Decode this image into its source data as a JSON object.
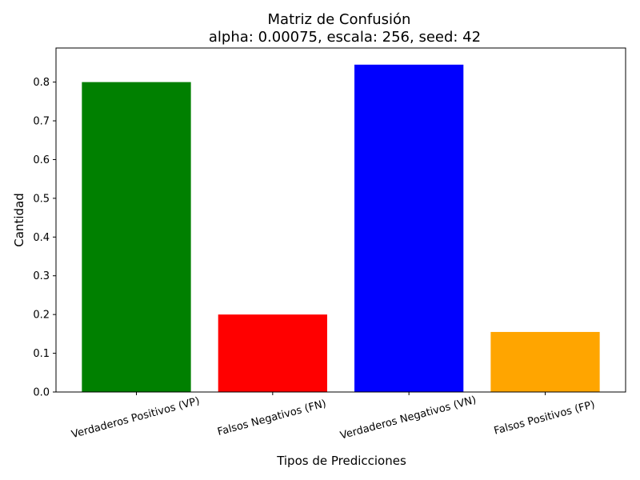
{
  "chart_data": {
    "type": "bar",
    "title": "Matriz de Confusión",
    "subtitle": "alpha: 0.00075, escala: 256, seed: 42",
    "xlabel": "Tipos de Predicciones",
    "ylabel": "Cantidad",
    "categories": [
      "Verdaderos Positivos (VP)",
      "Falsos Negativos (FN)",
      "Verdaderos Negativos (VN)",
      "Falsos Positivos (FP)"
    ],
    "values": [
      0.8,
      0.2,
      0.845,
      0.155
    ],
    "colors": [
      "#008000",
      "#ff0000",
      "#0000ff",
      "#ffa500"
    ],
    "ylim": [
      0,
      0.888
    ],
    "yticks": [
      "0.0",
      "0.1",
      "0.2",
      "0.3",
      "0.4",
      "0.5",
      "0.6",
      "0.7",
      "0.8"
    ],
    "grid": false,
    "legend": "none"
  }
}
